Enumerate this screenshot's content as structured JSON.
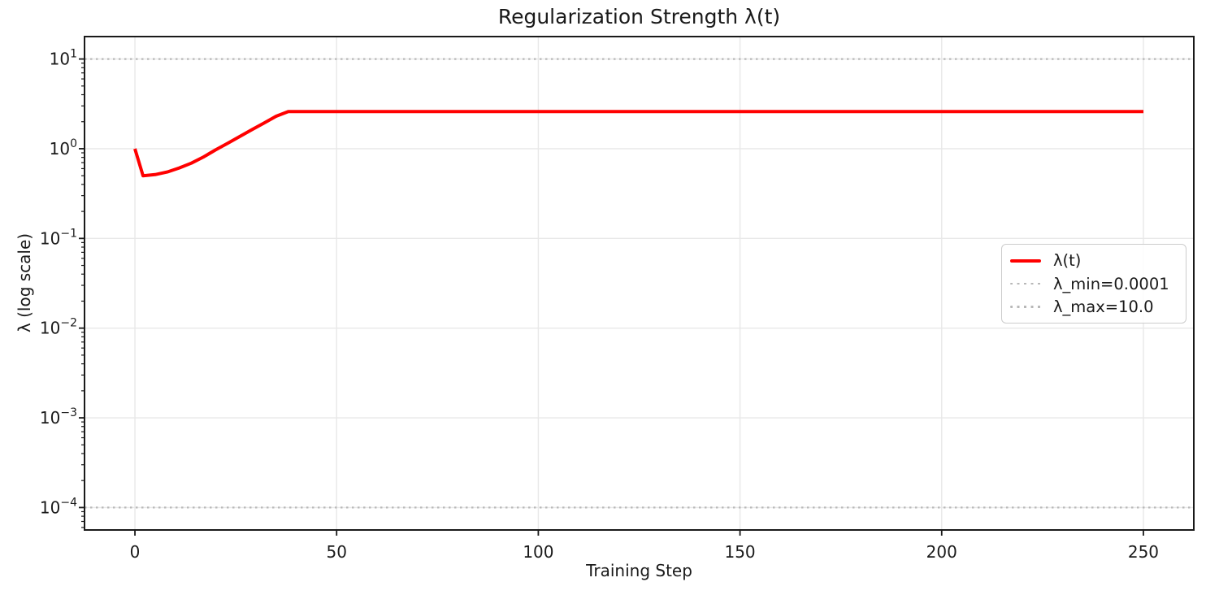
{
  "chart_data": {
    "type": "line",
    "title": "Regularization Strength λ(t)",
    "xlabel": "Training Step",
    "ylabel": "λ (log scale)",
    "x_scale": "linear",
    "y_scale": "log",
    "xlim": [
      -12.5,
      262.5
    ],
    "ylim_log10": [
      -4.25,
      1.25
    ],
    "x_ticks": [
      0,
      50,
      100,
      150,
      200,
      250
    ],
    "y_tick_exponents": [
      1,
      0,
      -1,
      -2,
      -3,
      -4
    ],
    "grid": true,
    "colors": {
      "line": "#ff0000",
      "threshold": "#b8b8b8",
      "grid": "#e8e8e8",
      "axes": "#1a1a1a"
    },
    "series": [
      {
        "name": "λ(t)",
        "color": "#ff0000",
        "style": "solid",
        "x": [
          0,
          2,
          5,
          8,
          11,
          14,
          17,
          20,
          23,
          26,
          29,
          32,
          35,
          38,
          250
        ],
        "y": [
          1.0,
          0.5,
          0.515,
          0.55,
          0.61,
          0.69,
          0.81,
          0.97,
          1.15,
          1.37,
          1.63,
          1.93,
          2.3,
          2.6,
          2.6
        ]
      }
    ],
    "hlines": [
      {
        "name": "λ_min",
        "value": 0.0001,
        "color": "#b8b8b8",
        "style": "dotted"
      },
      {
        "name": "λ_max",
        "value": 10.0,
        "color": "#b8b8b8",
        "style": "dotted"
      }
    ],
    "legend": {
      "position": "center right",
      "entries": [
        {
          "label": "λ(t)",
          "color": "#ff0000",
          "style": "solid"
        },
        {
          "label": "λ_min=0.0001",
          "color": "#b8b8b8",
          "style": "dotted"
        },
        {
          "label": "λ_max=10.0",
          "color": "#b8b8b8",
          "style": "dotted"
        }
      ]
    }
  }
}
